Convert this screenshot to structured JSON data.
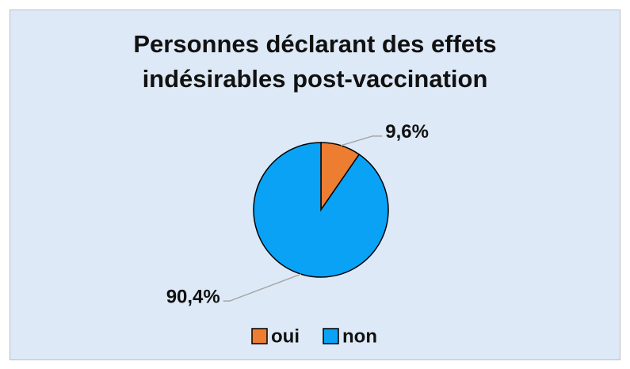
{
  "chart_data": {
    "type": "pie",
    "title": "Personnes déclarant des effets indésirables post-vaccination",
    "categories": [
      "oui",
      "non"
    ],
    "values": [
      9.6,
      90.4
    ],
    "value_labels": [
      "9,6%",
      "90,4%"
    ],
    "colors": [
      "#ed7d31",
      "#0aa2f5"
    ],
    "legend": "bottom"
  }
}
